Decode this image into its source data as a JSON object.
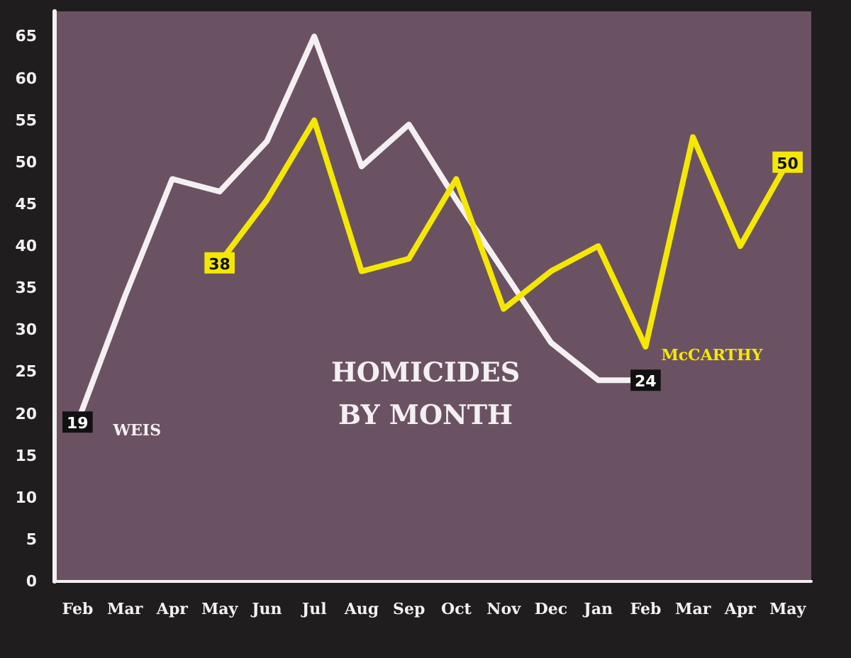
{
  "chart_data": {
    "type": "line",
    "title": "HOMICIDES\nBY MONTH",
    "categories": [
      "Feb",
      "Mar",
      "Apr",
      "May",
      "Jun",
      "Jul",
      "Aug",
      "Sep",
      "Oct",
      "Nov",
      "Dec",
      "Jan",
      "Feb",
      "Mar",
      "Apr",
      "May"
    ],
    "series": [
      {
        "name": "WEIS",
        "color": "#f4f0f2",
        "values": [
          19,
          34,
          48,
          46.5,
          52.5,
          65,
          49.5,
          54.5,
          45.5,
          37,
          28.5,
          24,
          24,
          null,
          null,
          null
        ],
        "value_labels": [
          "19",
          null,
          null,
          null,
          null,
          null,
          null,
          null,
          null,
          null,
          null,
          null,
          "24",
          null,
          null,
          null
        ]
      },
      {
        "name": "McCARTHY",
        "color": "#f5e800",
        "values": [
          null,
          null,
          null,
          38,
          45.5,
          55,
          37,
          38.5,
          48,
          32.5,
          37,
          40,
          28,
          53,
          40,
          50
        ],
        "value_labels": [
          null,
          null,
          null,
          "38",
          null,
          null,
          null,
          null,
          null,
          null,
          null,
          null,
          null,
          null,
          null,
          "50"
        ]
      }
    ],
    "ylim": [
      0,
      68
    ],
    "yticks": [
      0,
      5,
      10,
      15,
      20,
      25,
      30,
      35,
      40,
      45,
      50,
      55,
      60,
      65
    ],
    "grid": false,
    "legend": false,
    "marker": "none",
    "line_style": "solid"
  }
}
